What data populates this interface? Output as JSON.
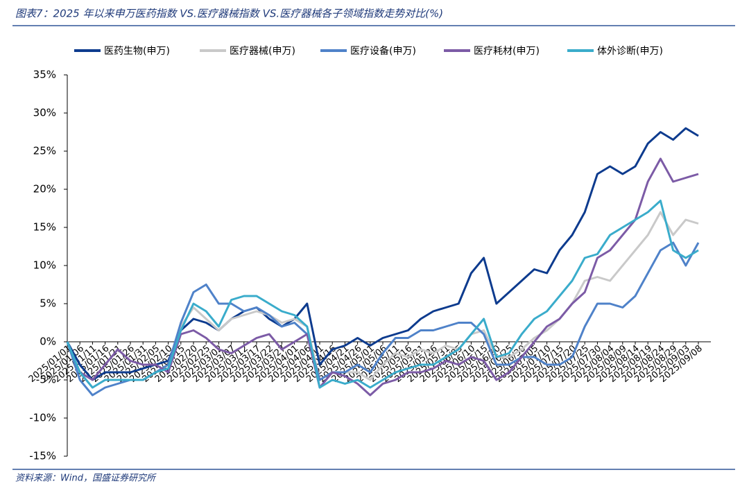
{
  "chart_data": {
    "type": "line",
    "title": "图表7：2025 年以来申万医药指数 VS.医疗器械指数 VS.医疗器械各子领域指数走势对比(%)",
    "source": "资料来源：Wind，国盛证券研究所",
    "categories": [
      "2025/01/01",
      "2025/01/06",
      "2025/01/11",
      "2025/01/16",
      "2025/01/21",
      "2025/01/26",
      "2025/01/31",
      "2025/02/05",
      "2025/02/10",
      "2025/02/15",
      "2025/02/20",
      "2025/02/25",
      "2025/03/02",
      "2025/03/07",
      "2025/03/12",
      "2025/03/17",
      "2025/03/22",
      "2025/03/27",
      "2025/04/01",
      "2025/04/06",
      "2025/04/11",
      "2025/04/16",
      "2025/04/21",
      "2025/04/26",
      "2025/05/01",
      "2025/05/06",
      "2025/05/11",
      "2025/05/16",
      "2025/05/21",
      "2025/05/26",
      "2025/05/31",
      "2025/06/05",
      "2025/06/10",
      "2025/06/15",
      "2025/06/20",
      "2025/06/25",
      "2025/06/30",
      "2025/07/05",
      "2025/07/10",
      "2025/07/15",
      "2025/07/20",
      "2025/07/25",
      "2025/07/30",
      "2025/08/04",
      "2025/08/09",
      "2025/08/14",
      "2025/08/19",
      "2025/08/24",
      "2025/08/29",
      "2025/09/03",
      "2025/09/08"
    ],
    "series": [
      {
        "name": "医药生物(申万)",
        "color": "#0d3b8e",
        "width": 3,
        "values": [
          0,
          -3,
          -5,
          -4,
          -4,
          -4,
          -3.5,
          -3,
          -2.5,
          1.5,
          3,
          2.5,
          1.5,
          3,
          4,
          4.5,
          3,
          2,
          3,
          5,
          -3,
          -1,
          -0.5,
          0.5,
          -0.5,
          0.5,
          1,
          1.5,
          3,
          4,
          4.5,
          5,
          9,
          11,
          5,
          6.5,
          8,
          9.5,
          9,
          12,
          14,
          17,
          22,
          23,
          22,
          23,
          26,
          27.5,
          26.5,
          28,
          27
        ]
      },
      {
        "name": "医疗器械(申万)",
        "color": "#c9c9c9",
        "width": 3,
        "values": [
          0,
          -4,
          -6,
          -5,
          -5,
          -5,
          -5,
          -4,
          -3,
          2,
          4.5,
          3,
          1.5,
          3,
          3.5,
          4,
          3.5,
          2.5,
          3,
          2,
          -5,
          -4,
          -4,
          -4,
          -5,
          -3,
          -1.5,
          -2,
          -1,
          -1.5,
          -0.5,
          -1,
          1,
          1.5,
          -2,
          -2,
          -1,
          0.5,
          1.5,
          3,
          5,
          8,
          8.5,
          8,
          10,
          12,
          14,
          17,
          14,
          16,
          15.5
        ]
      },
      {
        "name": "医疗设备(申万)",
        "color": "#4f82c9",
        "width": 3,
        "values": [
          0,
          -5,
          -7,
          -6,
          -5.5,
          -5,
          -5,
          -4,
          -3,
          2.5,
          6.5,
          7.5,
          5,
          5,
          4,
          4.5,
          3.5,
          2,
          2.5,
          1,
          -5,
          -4,
          -4,
          -3,
          -4,
          -1.5,
          0.5,
          0.5,
          1.5,
          1.5,
          2,
          2.5,
          2.5,
          1,
          -3,
          -3,
          -2,
          -2,
          -3,
          -3,
          -2,
          2,
          5,
          5,
          4.5,
          6,
          9,
          12,
          13,
          10,
          13
        ]
      },
      {
        "name": "医疗耗材(申万)",
        "color": "#7c5ba6",
        "width": 3,
        "values": [
          0,
          -4,
          -5,
          -3,
          -1,
          -2.5,
          -3,
          -3,
          -4,
          1,
          1.5,
          0.5,
          -1,
          -1.5,
          -0.5,
          0.5,
          1,
          -1,
          0,
          1,
          -6,
          -4,
          -4.5,
          -5.5,
          -7,
          -5.5,
          -5,
          -4,
          -4,
          -3.5,
          -2.5,
          -3,
          -2,
          -2.5,
          -5,
          -4,
          -2,
          0,
          2,
          3,
          5,
          6.5,
          11,
          12,
          14,
          16,
          21,
          24,
          21,
          21.5,
          22
        ]
      },
      {
        "name": "体外诊断(申万)",
        "color": "#3aaccb",
        "width": 3,
        "values": [
          0,
          -4,
          -6,
          -5,
          -5,
          -5,
          -5,
          -4,
          -3.5,
          1.5,
          5,
          4,
          2,
          5.5,
          6,
          6,
          5,
          4,
          3.5,
          2,
          -6,
          -5,
          -5.5,
          -5,
          -6,
          -5,
          -4,
          -3.5,
          -3,
          -3,
          -2,
          -1,
          1,
          3,
          -2,
          -1.5,
          1,
          3,
          4,
          6,
          8,
          11,
          11.5,
          14,
          15,
          16,
          17,
          18.5,
          12,
          11,
          12
        ]
      }
    ],
    "ylim": [
      -15,
      35
    ],
    "yticks": [
      {
        "value": -15,
        "label": "-15%"
      },
      {
        "value": -10,
        "label": "-10%"
      },
      {
        "value": -5,
        "label": "-5%"
      },
      {
        "value": 0,
        "label": "0%"
      },
      {
        "value": 5,
        "label": "5%"
      },
      {
        "value": 10,
        "label": "10%"
      },
      {
        "value": 15,
        "label": "15%"
      },
      {
        "value": 20,
        "label": "20%"
      },
      {
        "value": 25,
        "label": "25%"
      },
      {
        "value": 30,
        "label": "30%"
      },
      {
        "value": 35,
        "label": "35%"
      }
    ],
    "legend": "top"
  }
}
